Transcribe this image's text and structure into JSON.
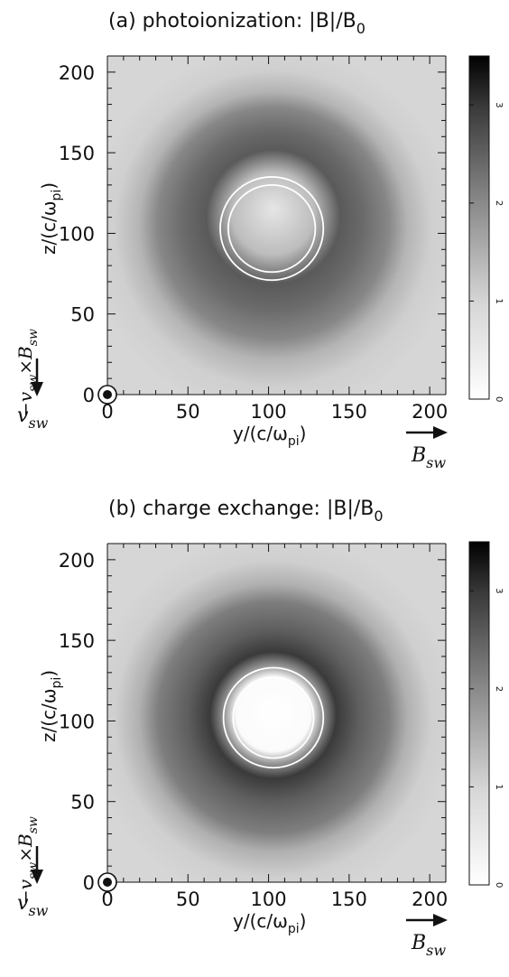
{
  "chart_data": [
    {
      "type": "heatmap",
      "title": "(a) photoionization: |B|/B",
      "title_sub": "0",
      "xlabel": "y/(c/ω",
      "xlabel_sub": "pi",
      "xlabel_close": ")",
      "ylabel": "z/(c/ω",
      "ylabel_sub": "pi",
      "ylabel_close": ")",
      "xlim": [
        0,
        210
      ],
      "ylim": [
        0,
        210
      ],
      "xticks": [
        "0",
        "50",
        "100",
        "150",
        "200"
      ],
      "yticks": [
        "0",
        "50",
        "100",
        "150",
        "200"
      ],
      "colorbar": {
        "range": [
          0,
          3.5
        ],
        "ticks": [
          "0",
          "1",
          "2",
          "3"
        ]
      },
      "annotations": {
        "vsw_label": "v",
        "vsw_sub": "sw",
        "vxb_label": "−v",
        "vxb_sub1": "sw",
        "vxb_mid": "×B",
        "vxb_sub2": "sw",
        "bsw_label": "B",
        "bsw_sub": "sw"
      },
      "structure": {
        "center": [
          102,
          103
        ],
        "inner_circle_radius": 27,
        "outer_circle_radius": 32,
        "core_value": 1.0,
        "ring_value": 2.4,
        "ring_radius": 55,
        "background_value": 0.7
      }
    },
    {
      "type": "heatmap",
      "title": "(b) charge exchange: |B|/B",
      "title_sub": "0",
      "xlabel": "y/(c/ω",
      "xlabel_sub": "pi",
      "xlabel_close": ")",
      "ylabel": "z/(c/ω",
      "ylabel_sub": "pi",
      "ylabel_close": ")",
      "xlim": [
        0,
        210
      ],
      "ylim": [
        0,
        210
      ],
      "xticks": [
        "0",
        "50",
        "100",
        "150",
        "200"
      ],
      "yticks": [
        "0",
        "50",
        "100",
        "150",
        "200"
      ],
      "colorbar": {
        "range": [
          0,
          3.5
        ],
        "ticks": [
          "0",
          "1",
          "2",
          "3"
        ]
      },
      "annotations": {
        "vsw_label": "v",
        "vsw_sub": "sw",
        "vxb_label": "−v",
        "vxb_sub1": "sw",
        "vxb_mid": "×B",
        "vxb_sub2": "sw",
        "bsw_label": "B",
        "bsw_sub": "sw"
      },
      "structure": {
        "center": [
          103,
          102
        ],
        "inner_circle_radius": 25,
        "outer_circle_radius": 31,
        "core_value": 0.0,
        "ring_value": 2.8,
        "ring_radius": 50,
        "background_value": 0.7
      }
    }
  ]
}
